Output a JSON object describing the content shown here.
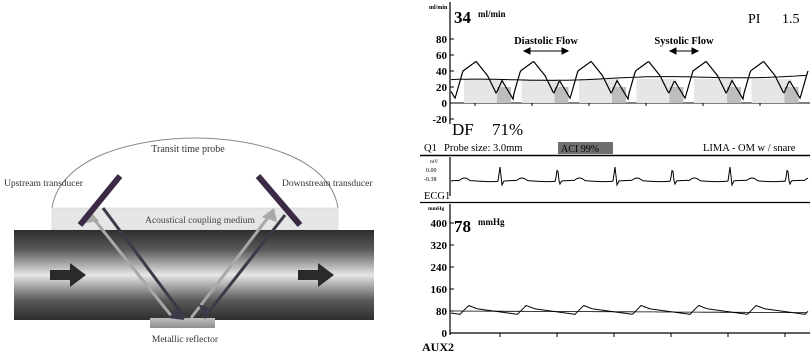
{
  "diagram": {
    "probe_label": "Transit time probe",
    "upstream_label": "Upstream transducer",
    "downstream_label": "Downstream transducer",
    "coupling_label": "Acoustical coupling medium",
    "reflector_label": "Metallic reflector",
    "colors": {
      "vessel_dark": "#2e2e2e",
      "vessel_light": "#e6e6e6",
      "beam_dark": "#3a3a48",
      "beam_light": "#a8a8a8",
      "coupling": "#e6e6e6"
    }
  },
  "monitor": {
    "flow": {
      "unit": "ml/min",
      "value": "34",
      "value_unit": "ml/min",
      "pi_label": "PI",
      "pi_value": "1.5",
      "diastolic_label": "Diastolic Flow",
      "systolic_label": "Systolic Flow",
      "y_ticks": [
        "80",
        "60",
        "40",
        "20",
        "0",
        "-20"
      ],
      "ylim": [
        -20,
        90
      ]
    },
    "df": {
      "label": "DF",
      "value": "71%"
    },
    "info": {
      "channel": "Q1",
      "probe_size": "Probe size: 3.0mm",
      "aci": "ACI 99%",
      "graft": "LIMA - OM w / snare"
    },
    "ecg": {
      "unit": "mV",
      "ticks": [
        "0.00",
        "-0.38"
      ],
      "label": "ECG1"
    },
    "pressure": {
      "unit": "mmHg",
      "value": "78",
      "value_unit": "mmHg",
      "y_ticks": [
        "400",
        "320",
        "240",
        "160",
        "80",
        "0"
      ],
      "ylim": [
        0,
        440
      ],
      "label": "AUX2"
    }
  }
}
